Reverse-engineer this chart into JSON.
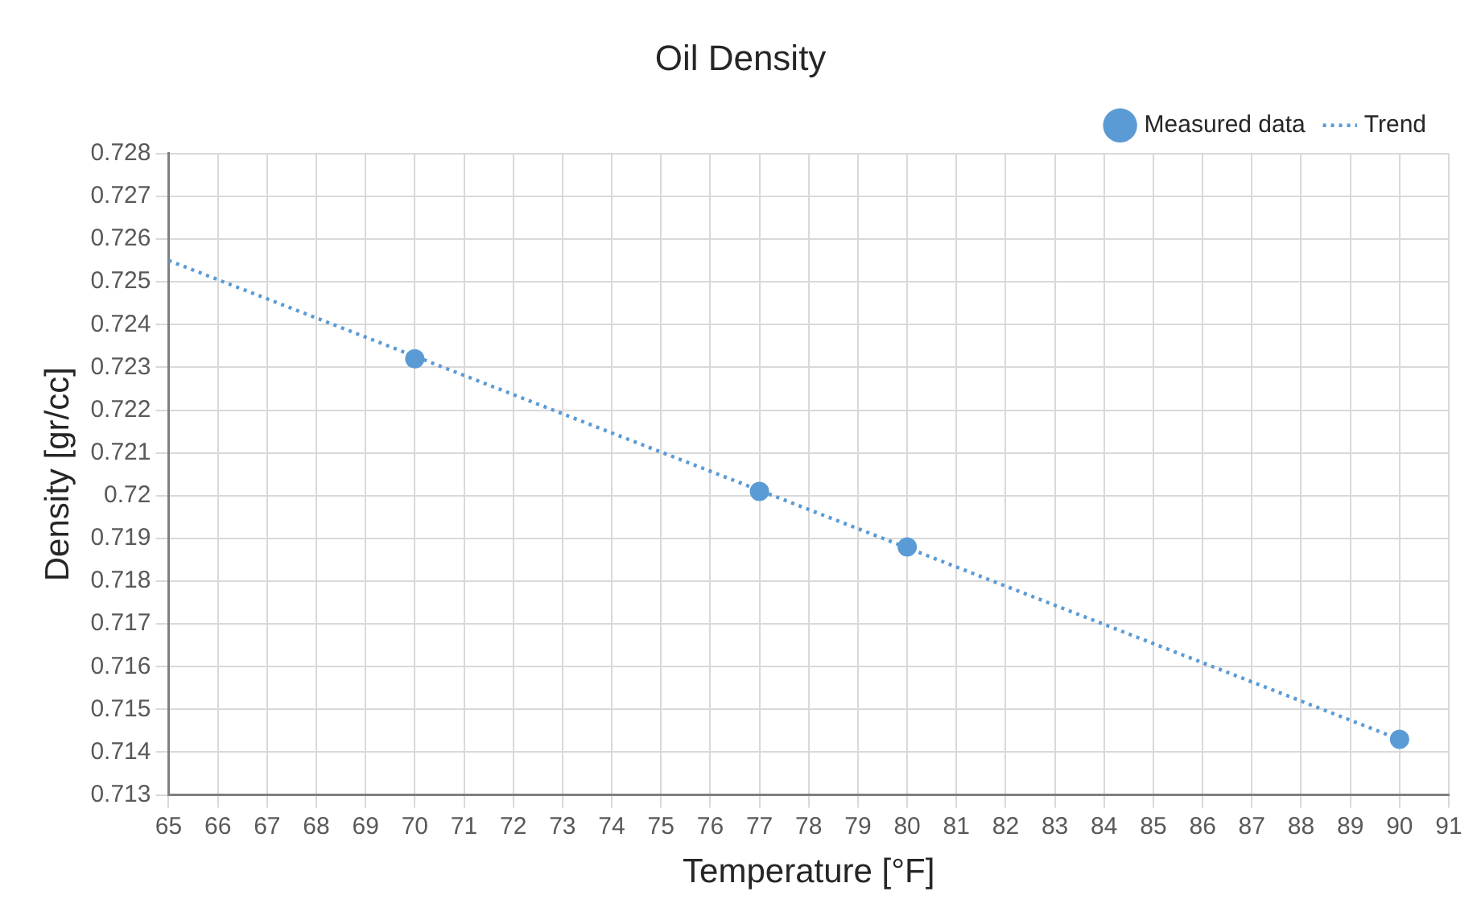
{
  "chart_data": {
    "type": "scatter",
    "title": "Oil Density",
    "xlabel": "Temperature [°F]",
    "ylabel": "Density [gr/cc]",
    "xlim": [
      65,
      91
    ],
    "xticks": [
      65,
      66,
      67,
      68,
      69,
      70,
      71,
      72,
      73,
      74,
      75,
      76,
      77,
      78,
      79,
      80,
      81,
      82,
      83,
      84,
      85,
      86,
      87,
      88,
      89,
      90,
      91
    ],
    "ylim": [
      0.713,
      0.728
    ],
    "yticks": [
      0.713,
      0.714,
      0.715,
      0.716,
      0.717,
      0.718,
      0.719,
      0.72,
      0.721,
      0.722,
      0.723,
      0.724,
      0.725,
      0.726,
      0.727,
      0.728
    ],
    "grid": true,
    "legend": "top right",
    "series": [
      {
        "name": "Measured data",
        "type": "scatter",
        "color": "#5b9bd5",
        "marker": "circle",
        "x": [
          70,
          77,
          80,
          90
        ],
        "values": [
          0.7232,
          0.7201,
          0.7188,
          0.7143
        ]
      },
      {
        "name": "Trend",
        "type": "line",
        "color": "#5b9bd5",
        "marker": "none",
        "line_style": "dotted",
        "x": [
          65,
          90
        ],
        "values": [
          0.7255,
          0.7143
        ]
      }
    ]
  }
}
